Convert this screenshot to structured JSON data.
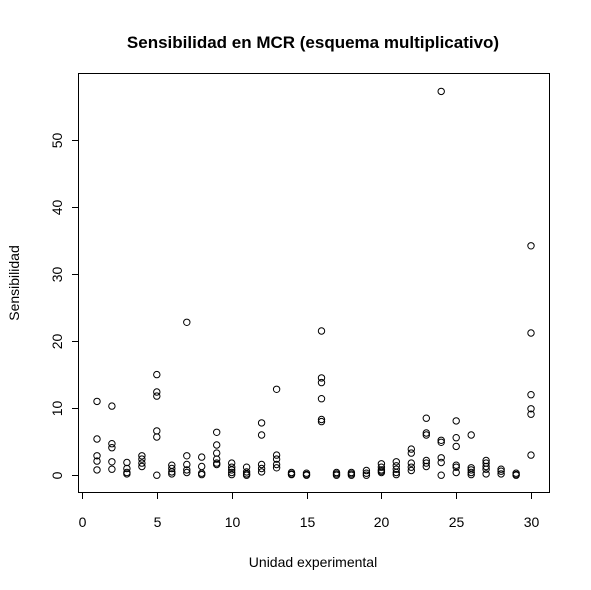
{
  "chart_data": {
    "type": "scatter",
    "title": "Sensibilidad en MCR (esquema multiplicativo)",
    "xlabel": "Unidad experimental",
    "ylabel": "Sensibilidad",
    "xlim": [
      -0.2,
      31.2
    ],
    "ylim": [
      -2.5,
      59.8
    ],
    "x_ticks": [
      0,
      5,
      10,
      15,
      20,
      25,
      30
    ],
    "y_ticks": [
      0,
      10,
      20,
      30,
      40,
      50
    ],
    "grid": false,
    "point_color": "#000000",
    "series": [
      {
        "points": [
          [
            1,
            11.0
          ],
          [
            1,
            5.4
          ],
          [
            1,
            2.9
          ],
          [
            1,
            2.1
          ],
          [
            1,
            0.8
          ],
          [
            2,
            10.3
          ],
          [
            2,
            4.7
          ],
          [
            2,
            4.1
          ],
          [
            2,
            2.0
          ],
          [
            2,
            0.9
          ],
          [
            3,
            1.9
          ],
          [
            3,
            1.0
          ],
          [
            3,
            0.4
          ],
          [
            3,
            0.2
          ],
          [
            4,
            2.9
          ],
          [
            4,
            2.4
          ],
          [
            4,
            1.8
          ],
          [
            4,
            1.3
          ],
          [
            5,
            15.0
          ],
          [
            5,
            12.4
          ],
          [
            5,
            11.8
          ],
          [
            5,
            6.6
          ],
          [
            5,
            5.7
          ],
          [
            5,
            0.0
          ],
          [
            6,
            1.5
          ],
          [
            6,
            1.0
          ],
          [
            6,
            0.5
          ],
          [
            6,
            0.2
          ],
          [
            7,
            22.8
          ],
          [
            7,
            2.9
          ],
          [
            7,
            1.6
          ],
          [
            7,
            0.8
          ],
          [
            7,
            0.4
          ],
          [
            8,
            2.7
          ],
          [
            8,
            1.3
          ],
          [
            8,
            0.3
          ],
          [
            8,
            0.1
          ],
          [
            9,
            6.4
          ],
          [
            9,
            4.5
          ],
          [
            9,
            3.3
          ],
          [
            9,
            2.4
          ],
          [
            9,
            1.8
          ],
          [
            9,
            1.6
          ],
          [
            10,
            1.8
          ],
          [
            10,
            1.2
          ],
          [
            10,
            0.8
          ],
          [
            10,
            0.4
          ],
          [
            10,
            0.1
          ],
          [
            11,
            1.2
          ],
          [
            11,
            0.5
          ],
          [
            11,
            0.2
          ],
          [
            11,
            0.0
          ],
          [
            12,
            7.8
          ],
          [
            12,
            6.0
          ],
          [
            12,
            1.6
          ],
          [
            12,
            1.0
          ],
          [
            12,
            0.5
          ],
          [
            13,
            12.8
          ],
          [
            13,
            3.0
          ],
          [
            13,
            2.4
          ],
          [
            13,
            1.6
          ],
          [
            13,
            1.1
          ],
          [
            14,
            0.4
          ],
          [
            14,
            0.2
          ],
          [
            14,
            0.1
          ],
          [
            15,
            0.3
          ],
          [
            15,
            0.1
          ],
          [
            15,
            0.0
          ],
          [
            16,
            21.5
          ],
          [
            16,
            14.5
          ],
          [
            16,
            13.8
          ],
          [
            16,
            11.4
          ],
          [
            16,
            8.3
          ],
          [
            16,
            8.0
          ],
          [
            17,
            0.4
          ],
          [
            17,
            0.2
          ],
          [
            17,
            0.0
          ],
          [
            18,
            0.4
          ],
          [
            18,
            0.2
          ],
          [
            18,
            0.0
          ],
          [
            19,
            0.7
          ],
          [
            19,
            0.3
          ],
          [
            19,
            0.0
          ],
          [
            20,
            1.7
          ],
          [
            20,
            1.2
          ],
          [
            20,
            0.8
          ],
          [
            20,
            0.6
          ],
          [
            20,
            0.4
          ],
          [
            21,
            2.0
          ],
          [
            21,
            1.4
          ],
          [
            21,
            0.9
          ],
          [
            21,
            0.4
          ],
          [
            21,
            0.1
          ],
          [
            22,
            3.9
          ],
          [
            22,
            3.3
          ],
          [
            22,
            1.8
          ],
          [
            22,
            1.2
          ],
          [
            22,
            0.7
          ],
          [
            23,
            8.5
          ],
          [
            23,
            6.3
          ],
          [
            23,
            6.0
          ],
          [
            23,
            2.2
          ],
          [
            23,
            1.8
          ],
          [
            23,
            1.3
          ],
          [
            24,
            57.2
          ],
          [
            24,
            5.2
          ],
          [
            24,
            4.9
          ],
          [
            24,
            2.6
          ],
          [
            24,
            1.9
          ],
          [
            24,
            0.0
          ],
          [
            25,
            8.1
          ],
          [
            25,
            5.6
          ],
          [
            25,
            4.3
          ],
          [
            25,
            1.5
          ],
          [
            25,
            1.2
          ],
          [
            25,
            0.4
          ],
          [
            26,
            6.0
          ],
          [
            26,
            1.1
          ],
          [
            26,
            0.8
          ],
          [
            26,
            0.4
          ],
          [
            26,
            0.1
          ],
          [
            27,
            2.2
          ],
          [
            27,
            1.8
          ],
          [
            27,
            1.3
          ],
          [
            27,
            0.9
          ],
          [
            27,
            0.2
          ],
          [
            28,
            0.9
          ],
          [
            28,
            0.6
          ],
          [
            28,
            0.2
          ],
          [
            29,
            0.3
          ],
          [
            29,
            0.1
          ],
          [
            29,
            0.0
          ],
          [
            30,
            34.2
          ],
          [
            30,
            21.2
          ],
          [
            30,
            12.0
          ],
          [
            30,
            9.9
          ],
          [
            30,
            9.1
          ],
          [
            30,
            3.0
          ]
        ]
      }
    ]
  }
}
